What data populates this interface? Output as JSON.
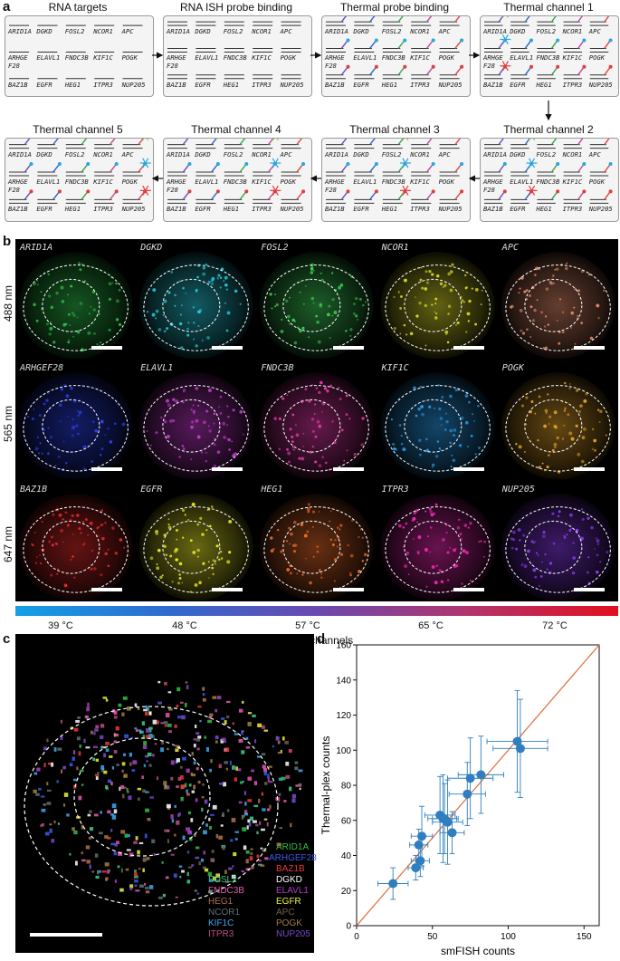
{
  "panel_letters": {
    "a": "a",
    "b": "b",
    "c": "c",
    "d": "d"
  },
  "panel_a": {
    "steps": [
      {
        "title": "RNA targets",
        "mode": "none"
      },
      {
        "title": "RNA ISH probe binding",
        "mode": "bars"
      },
      {
        "title": "Thermal probe binding",
        "mode": "colored"
      },
      {
        "title": "Thermal channel 1",
        "mode": "colored",
        "stars": [
          0
        ]
      },
      {
        "title": "Thermal channel 2",
        "mode": "colored",
        "stars": [
          1
        ]
      },
      {
        "title": "Thermal channel 3",
        "mode": "colored",
        "stars": [
          2
        ]
      },
      {
        "title": "Thermal channel 4",
        "mode": "colored",
        "stars": [
          3
        ]
      },
      {
        "title": "Thermal channel 5",
        "mode": "colored",
        "stars": [
          4
        ]
      }
    ],
    "genes": [
      [
        "ARID1A",
        "DGKD",
        "FOSL2",
        "NCOR1",
        "APC"
      ],
      [
        "ARHGE F28",
        "ELAVL1",
        "FNDC3B",
        "KIF1C",
        "POGK"
      ],
      [
        "BAZ1B",
        "EGFR",
        "HEG1",
        "ITPR3",
        "NUP205"
      ]
    ],
    "gene_lines": [
      [
        [
          "ARID1A"
        ],
        [
          "DGKD"
        ],
        [
          "FOSL2"
        ],
        [
          "NCOR1"
        ],
        [
          "APC"
        ]
      ],
      [
        [
          "ARHGE",
          "F28"
        ],
        [
          "ELAVL1"
        ],
        [
          "FNDC3B"
        ],
        [
          "KIF1C"
        ],
        [
          "POGK"
        ]
      ],
      [
        [
          "BAZ1B"
        ],
        [
          "EGFR"
        ],
        [
          "HEG1"
        ],
        [
          "ITPR3"
        ],
        [
          "NUP205"
        ]
      ]
    ],
    "channel_colors": [
      "#8fc93a",
      "#2aa6df",
      "#e23b3b"
    ],
    "probe_colors": [
      "#6b4bb8",
      "#2f62c8",
      "#3aa34a",
      "#c04a9a",
      "#e04545"
    ]
  },
  "panel_b": {
    "row_labels": [
      "488 nm",
      "565 nm",
      "647 nm"
    ],
    "tiles": [
      [
        {
          "name": "ARID1A",
          "color": "#2fbf4a"
        },
        {
          "name": "DGKD",
          "color": "#29c8d8"
        },
        {
          "name": "FOSL2",
          "color": "#3fcf5a"
        },
        {
          "name": "NCOR1",
          "color": "#d9d92a"
        },
        {
          "name": "APC",
          "color": "#e08a6a"
        }
      ],
      [
        {
          "name": "ARHGEF28",
          "color": "#2a3fe0"
        },
        {
          "name": "ELAVL1",
          "color": "#c23acb"
        },
        {
          "name": "FNDC3B",
          "color": "#e23aa8"
        },
        {
          "name": "KIF1C",
          "color": "#2a9ae8"
        },
        {
          "name": "POGK",
          "color": "#e0a02a"
        }
      ],
      [
        {
          "name": "BAZ1B",
          "color": "#e02a2a"
        },
        {
          "name": "EGFR",
          "color": "#e8e82a"
        },
        {
          "name": "HEG1",
          "color": "#e86a2a"
        },
        {
          "name": "ITPR3",
          "color": "#e82ab0"
        },
        {
          "name": "NUP205",
          "color": "#8a3aea"
        }
      ]
    ],
    "colorbar": {
      "ticks": [
        "39 °C",
        "48 °C",
        "57 °C",
        "65 °C",
        "72 °C"
      ],
      "label": "Thermal channels"
    }
  },
  "panel_c": {
    "legend": [
      {
        "text": "ARID1A",
        "color": "#2fbf4a"
      },
      {
        "text": "ARHGEF28",
        "color": "#3a5ae8"
      },
      {
        "text": "BAZ1B",
        "color": "#e83a3a"
      },
      {
        "text": "FOSL2",
        "color": "#3fcf8a"
      },
      {
        "text": "DGKD",
        "color": "#ffffff"
      },
      {
        "text": "FNDC3B",
        "color": "#e85ab0"
      },
      {
        "text": "ELAVL1",
        "color": "#b040c0"
      },
      {
        "text": "HEG1",
        "color": "#b07050"
      },
      {
        "text": "EGFR",
        "color": "#f0f040"
      },
      {
        "text": "NCOR1",
        "color": "#607070"
      },
      {
        "text": "APC",
        "color": "#706050"
      },
      {
        "text": "KIF1C",
        "color": "#40a8f0"
      },
      {
        "text": "POGK",
        "color": "#a08040"
      },
      {
        "text": "ITPR3",
        "color": "#c04a8a"
      },
      {
        "text": "NUP205",
        "color": "#7a4ad0"
      }
    ]
  },
  "chart_data": {
    "type": "scatter",
    "xlabel": "smFISH counts",
    "ylabel": "Thermal-plex counts",
    "xlim": [
      0,
      160
    ],
    "ylim": [
      0,
      160
    ],
    "xticks": [
      0,
      50,
      100,
      150
    ],
    "yticks": [
      0,
      20,
      40,
      60,
      80,
      100,
      120,
      140,
      160
    ],
    "identity_line": true,
    "marker_color": "#2f7fc0",
    "line_color": "#e06a3a",
    "points": [
      {
        "x": 24,
        "y": 24,
        "xerr": 10,
        "yerr": 9
      },
      {
        "x": 39,
        "y": 33,
        "xerr": 5,
        "yerr": 7
      },
      {
        "x": 41,
        "y": 46,
        "xerr": 6,
        "yerr": 9
      },
      {
        "x": 42,
        "y": 37,
        "xerr": 6,
        "yerr": 9
      },
      {
        "x": 43,
        "y": 51,
        "xerr": 7,
        "yerr": 17
      },
      {
        "x": 55,
        "y": 63,
        "xerr": 10,
        "yerr": 22
      },
      {
        "x": 57,
        "y": 61,
        "xerr": 10,
        "yerr": 25
      },
      {
        "x": 58,
        "y": 61,
        "xerr": 8,
        "yerr": 20
      },
      {
        "x": 60,
        "y": 59,
        "xerr": 10,
        "yerr": 24
      },
      {
        "x": 63,
        "y": 53,
        "xerr": 8,
        "yerr": 12
      },
      {
        "x": 73,
        "y": 75,
        "xerr": 12,
        "yerr": 18
      },
      {
        "x": 75,
        "y": 84,
        "xerr": 15,
        "yerr": 23
      },
      {
        "x": 82,
        "y": 86,
        "xerr": 15,
        "yerr": 22
      },
      {
        "x": 106,
        "y": 105,
        "xerr": 20,
        "yerr": 29
      },
      {
        "x": 108,
        "y": 101,
        "xerr": 18,
        "yerr": 28
      }
    ]
  }
}
